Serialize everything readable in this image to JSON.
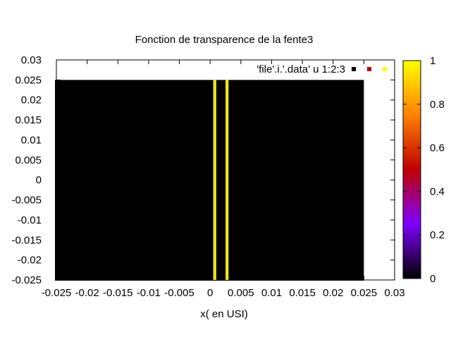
{
  "chart_data": {
    "type": "heatmap",
    "title": "Fonction de transparence de la fente3",
    "xlabel": "x( en USI)",
    "ylabel": "",
    "xlim": [
      -0.025,
      0.03
    ],
    "ylim": [
      -0.025,
      0.03
    ],
    "x_ticks": [
      "-0.025",
      "-0.02",
      "-0.015",
      "-0.01",
      "-0.005",
      "0",
      "0.005",
      "0.01",
      "0.015",
      "0.02",
      "0.025",
      "0.03"
    ],
    "y_ticks": [
      "0.03",
      "0.025",
      "0.02",
      "0.015",
      "0.01",
      "0.005",
      "0",
      "-0.005",
      "-0.01",
      "-0.015",
      "-0.02",
      "-0.025"
    ],
    "grid": false,
    "legend": {
      "placement": "top-right",
      "label": "'file'.i.'.data' u 1:2:3"
    },
    "colorbar": {
      "range": [
        0,
        1
      ],
      "ticks": [
        "1",
        "0.8",
        "0.6",
        "0.4",
        "0.2",
        "0"
      ],
      "palette": [
        "#000000",
        "#7f00ff",
        "#c00000",
        "#ff8000",
        "#ffff00"
      ]
    },
    "region": {
      "x": [
        -0.025,
        0.025
      ],
      "y": [
        -0.025,
        0.025
      ],
      "value": 0
    },
    "slits": [
      {
        "x": [
          0.0005,
          0.001
        ],
        "y": [
          -0.025,
          0.025
        ],
        "value": 1
      },
      {
        "x": [
          0.0025,
          0.003
        ],
        "y": [
          -0.025,
          0.025
        ],
        "value": 1
      }
    ],
    "colors": {
      "background_value": "#000000",
      "slit_value": "#f0e21a"
    }
  }
}
